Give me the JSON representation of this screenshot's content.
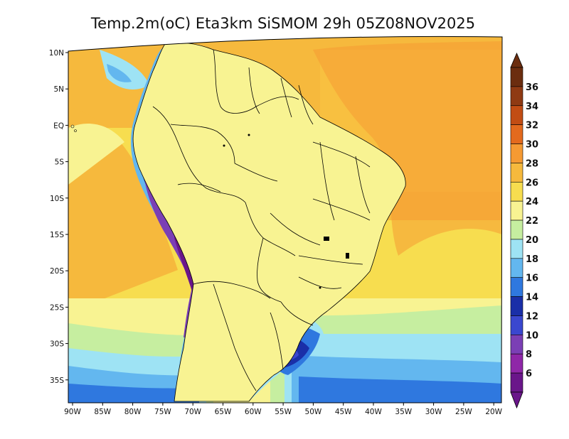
{
  "title": "Temp.2m(oC) Eta3km SiSMOM 29h 05Z08NOV2025",
  "lat_ticks": [
    "10N",
    "5N",
    "EQ",
    "5S",
    "10S",
    "15S",
    "20S",
    "25S",
    "30S",
    "35S"
  ],
  "lon_ticks": [
    "90W",
    "85W",
    "80W",
    "75W",
    "70W",
    "65W",
    "60W",
    "55W",
    "50W",
    "45W",
    "40W",
    "35W",
    "30W",
    "25W",
    "20W"
  ],
  "colorbar": {
    "labels": [
      "36",
      "34",
      "32",
      "30",
      "28",
      "26",
      "24",
      "22",
      "20",
      "18",
      "16",
      "14",
      "12",
      "10",
      "8",
      "6"
    ],
    "colors": [
      "#6b2d0f",
      "#8f3a13",
      "#c24d14",
      "#e36a1e",
      "#f59a33",
      "#f6b93d",
      "#f7dd4f",
      "#f8f392",
      "#c6eea0",
      "#9ee3f4",
      "#63b7ef",
      "#2f78df",
      "#1a2fa8",
      "#3a47cf",
      "#7b3fb5",
      "#8f27a8",
      "#6a168a"
    ]
  }
}
